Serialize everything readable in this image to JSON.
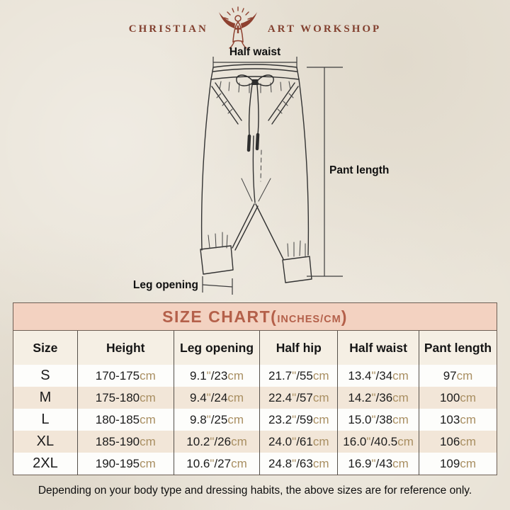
{
  "brand": {
    "name_left": "CHRISTIAN",
    "name_right": "ART WORKSHOP"
  },
  "diagram": {
    "labels": {
      "half_waist": "Half waist",
      "pant_length": "Pant length",
      "leg_opening": "Leg opening"
    }
  },
  "size_chart": {
    "title_main": "SIZE CHART(",
    "title_sub": "INCHES/CM",
    "title_close": ")",
    "columns": [
      "Size",
      "Height",
      "Leg opening",
      "Half hip",
      "Half waist",
      "Pant length"
    ],
    "rows": [
      {
        "size": "S",
        "height": "170-175cm",
        "leg_opening": "9.1\"/23cm",
        "half_hip": "21.7\"/55cm",
        "half_waist": "13.4\"/34cm",
        "pant_length": "97cm"
      },
      {
        "size": "M",
        "height": "175-180cm",
        "leg_opening": "9.4\"/24cm",
        "half_hip": "22.4\"/57cm",
        "half_waist": "14.2\"/36cm",
        "pant_length": "100cm"
      },
      {
        "size": "L",
        "height": "180-185cm",
        "leg_opening": "9.8\"/25cm",
        "half_hip": "23.2\"/59cm",
        "half_waist": "15.0\"/38cm",
        "pant_length": "103cm"
      },
      {
        "size": "XL",
        "height": "185-190cm",
        "leg_opening": "10.2\"/26cm",
        "half_hip": "24.0\"/61cm",
        "half_waist": "16.0\"/40.5cm",
        "pant_length": "106cm"
      },
      {
        "size": "2XL",
        "height": "190-195cm",
        "leg_opening": "10.6\"/27cm",
        "half_hip": "24.8\"/63cm",
        "half_waist": "16.9\"/43cm",
        "pant_length": "109cm"
      }
    ]
  },
  "footer": {
    "note": "Depending on your body type and dressing habits, the above sizes are for reference only."
  },
  "colors": {
    "accent_maroon": "#8e4130",
    "title_pink_bg": "#f3d2c1",
    "title_text": "#b4604a",
    "row_beige": "#f2e6d8",
    "unit_tan": "#a98f62",
    "page_background": "#e9e3d7"
  }
}
